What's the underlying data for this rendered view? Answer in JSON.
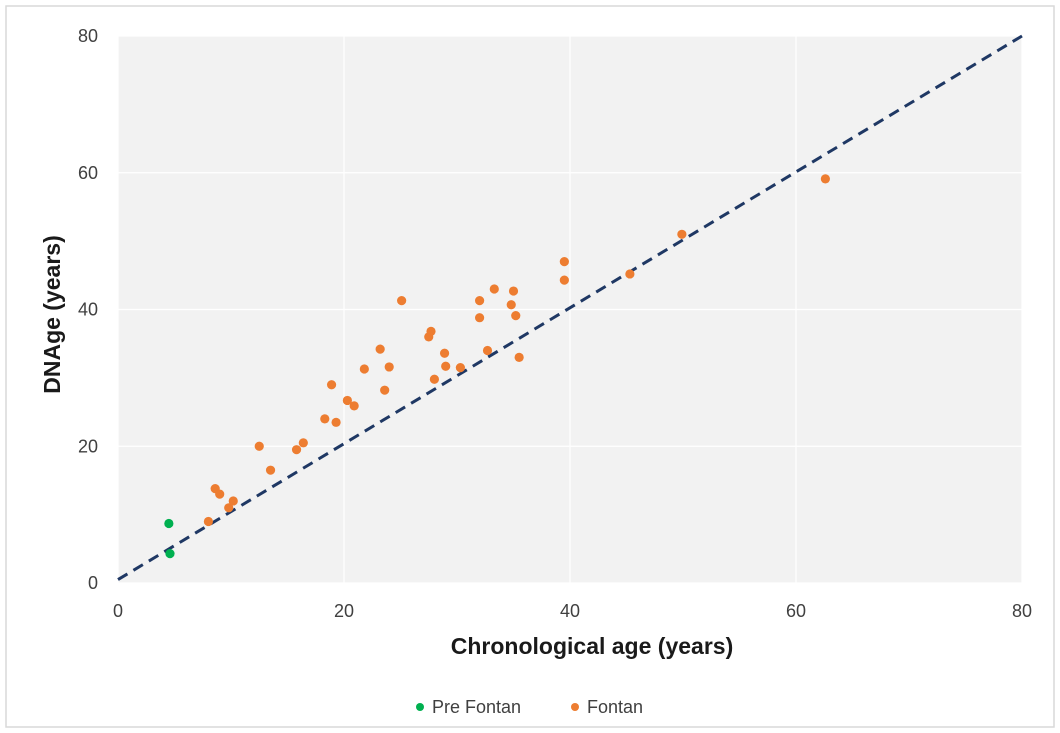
{
  "chart_data": {
    "type": "scatter",
    "xlabel": "Chronological age (years)",
    "ylabel": "DNAge (years)",
    "xlim": [
      0,
      80
    ],
    "ylim": [
      0,
      80
    ],
    "xticks": [
      "0",
      "20",
      "40",
      "60",
      "80"
    ],
    "yticks": [
      "0",
      "20",
      "40",
      "60",
      "80"
    ],
    "grid": true,
    "legend_position": "bottom",
    "reference_line": {
      "style": "dashed",
      "color": "#1f3864",
      "points": [
        [
          0,
          0.5
        ],
        [
          80,
          80
        ]
      ]
    },
    "series": [
      {
        "name": "Pre Fontan",
        "color": "#00b050",
        "points": [
          [
            4.5,
            8.7
          ],
          [
            4.6,
            4.3
          ]
        ]
      },
      {
        "name": "Fontan",
        "color": "#ed7d31",
        "points": [
          [
            8.0,
            9.0
          ],
          [
            8.6,
            13.8
          ],
          [
            9.0,
            13.0
          ],
          [
            9.8,
            11.0
          ],
          [
            10.2,
            12.0
          ],
          [
            12.5,
            20.0
          ],
          [
            13.5,
            16.5
          ],
          [
            15.8,
            19.5
          ],
          [
            16.4,
            20.5
          ],
          [
            18.3,
            24.0
          ],
          [
            18.9,
            29.0
          ],
          [
            19.3,
            23.5
          ],
          [
            20.3,
            26.7
          ],
          [
            20.9,
            25.9
          ],
          [
            21.8,
            31.3
          ],
          [
            23.2,
            34.2
          ],
          [
            23.6,
            28.2
          ],
          [
            24.0,
            31.6
          ],
          [
            25.1,
            41.3
          ],
          [
            27.5,
            36.0
          ],
          [
            27.7,
            36.8
          ],
          [
            28.0,
            29.8
          ],
          [
            28.9,
            33.6
          ],
          [
            29.0,
            31.7
          ],
          [
            30.3,
            31.5
          ],
          [
            32.0,
            41.3
          ],
          [
            32.0,
            38.8
          ],
          [
            32.7,
            34.0
          ],
          [
            33.3,
            43.0
          ],
          [
            34.8,
            40.7
          ],
          [
            35.0,
            42.7
          ],
          [
            35.2,
            39.1
          ],
          [
            35.5,
            33.0
          ],
          [
            39.5,
            47.0
          ],
          [
            39.5,
            44.3
          ],
          [
            45.3,
            45.2
          ],
          [
            49.9,
            51.0
          ],
          [
            62.6,
            59.1
          ]
        ]
      }
    ]
  },
  "colors": {
    "plot_background": "#f2f2f2",
    "gridline": "#ffffff",
    "frame": "#d9d9d9"
  }
}
